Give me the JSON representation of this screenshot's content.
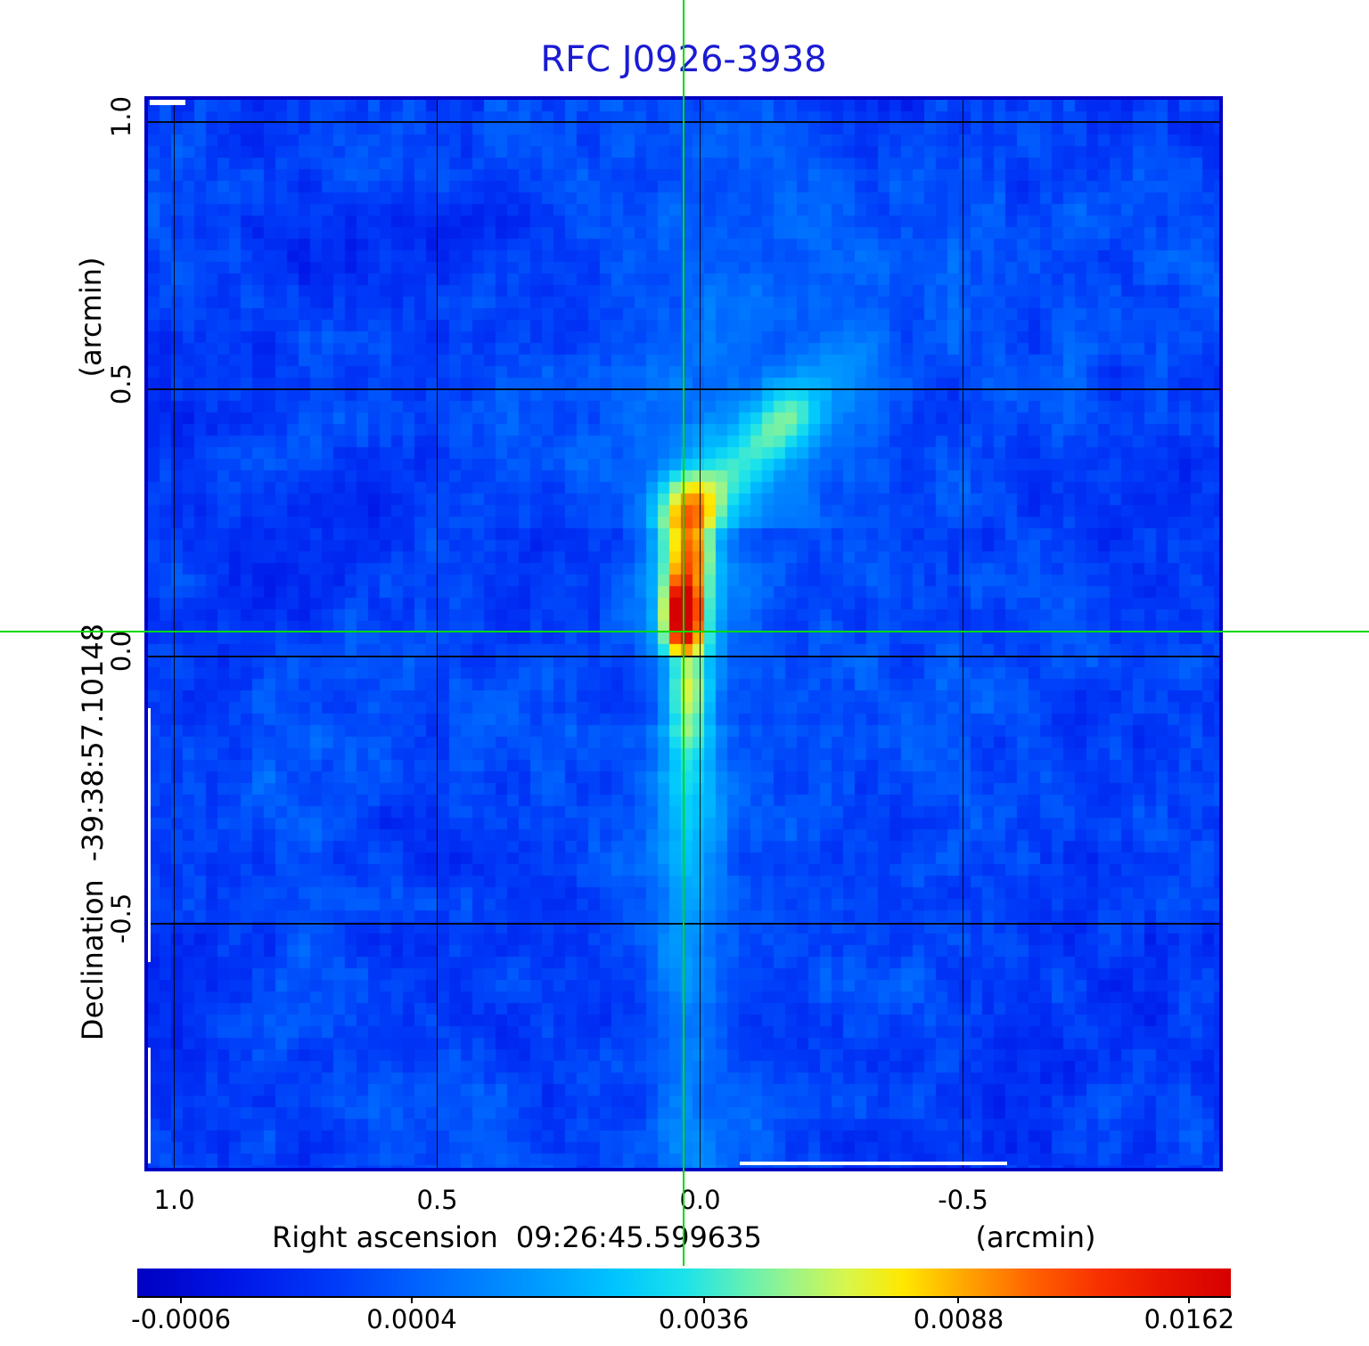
{
  "title": {
    "text": "RFC J0926-3938",
    "color": "#1b1bd2"
  },
  "axes": {
    "x": {
      "name": "Right ascension",
      "coordinate": "09:26:45.599635",
      "unit": "(arcmin)",
      "ticks": [
        {
          "label": "1.0",
          "value": 1.0
        },
        {
          "label": "0.5",
          "value": 0.5
        },
        {
          "label": "0.0",
          "value": 0.0
        },
        {
          "label": "-0.5",
          "value": -0.5
        }
      ]
    },
    "y": {
      "name": "Declination",
      "coordinate": "-39:38:57.10148",
      "unit": "(arcmin)",
      "ticks": [
        {
          "label": "1.0",
          "value": 1.0
        },
        {
          "label": "0.5",
          "value": 0.5
        },
        {
          "label": "0.0",
          "value": 0.0
        },
        {
          "label": "-0.5",
          "value": -0.5
        }
      ]
    }
  },
  "colorbar": {
    "tick_labels": [
      "-0.0006",
      "0.0004",
      "0.0036",
      "0.0088",
      "0.0162"
    ],
    "tick_positions": [
      0.04,
      0.251,
      0.518,
      0.751,
      0.962
    ],
    "gradient_stops": [
      [
        0.0,
        "#0000c2"
      ],
      [
        0.09,
        "#0016e8"
      ],
      [
        0.18,
        "#003af8"
      ],
      [
        0.27,
        "#006aff"
      ],
      [
        0.36,
        "#0098ff"
      ],
      [
        0.44,
        "#00c6ff"
      ],
      [
        0.5,
        "#1ce2ea"
      ],
      [
        0.55,
        "#5cefba"
      ],
      [
        0.6,
        "#9ef486"
      ],
      [
        0.65,
        "#d9f64a"
      ],
      [
        0.7,
        "#ffe800"
      ],
      [
        0.755,
        "#ffa800"
      ],
      [
        0.82,
        "#ff6000"
      ],
      [
        0.88,
        "#f83000"
      ],
      [
        0.94,
        "#e61400"
      ],
      [
        1.0,
        "#d60000"
      ]
    ]
  },
  "crosshair": {
    "color": "#00d900"
  },
  "chart_data": {
    "type": "heatmap",
    "title": "RFC J0926-3938",
    "xlabel": "Right ascension 09:26:45.599635 (arcmin)",
    "ylabel": "Declination -39:38:57.10148 (arcmin)",
    "x_ticks": [
      1.0,
      0.5,
      0.0,
      -0.5
    ],
    "y_ticks": [
      1.0,
      0.5,
      0.0,
      -0.5
    ],
    "x_range": [
      1.05,
      -0.97
    ],
    "y_range": [
      -0.96,
      1.04
    ],
    "grid": true,
    "legend": false,
    "colorbar_ticks": [
      -0.0006,
      0.0004,
      0.0036,
      0.0088,
      0.0162
    ],
    "colorbar_orientation": "horizontal",
    "intensity_scale": "nonlinear rainbow colormap, dark blue through cyan and yellow to red",
    "crosshair_position_arcmin": {
      "ra": 0.0,
      "dec": 0.0
    },
    "source": {
      "description": "bright compact red core just above map center with a vertical jet-like yellow/cyan feature extending south past -0.5 arcmin, an orange knot above the core, and a faint diffuse cyan plume toward the upper right; background is pixelated blue noise",
      "peak_intensity": 0.0162,
      "peak_offset_arcmin": {
        "ra": 0.03,
        "dec": 0.08
      }
    }
  }
}
